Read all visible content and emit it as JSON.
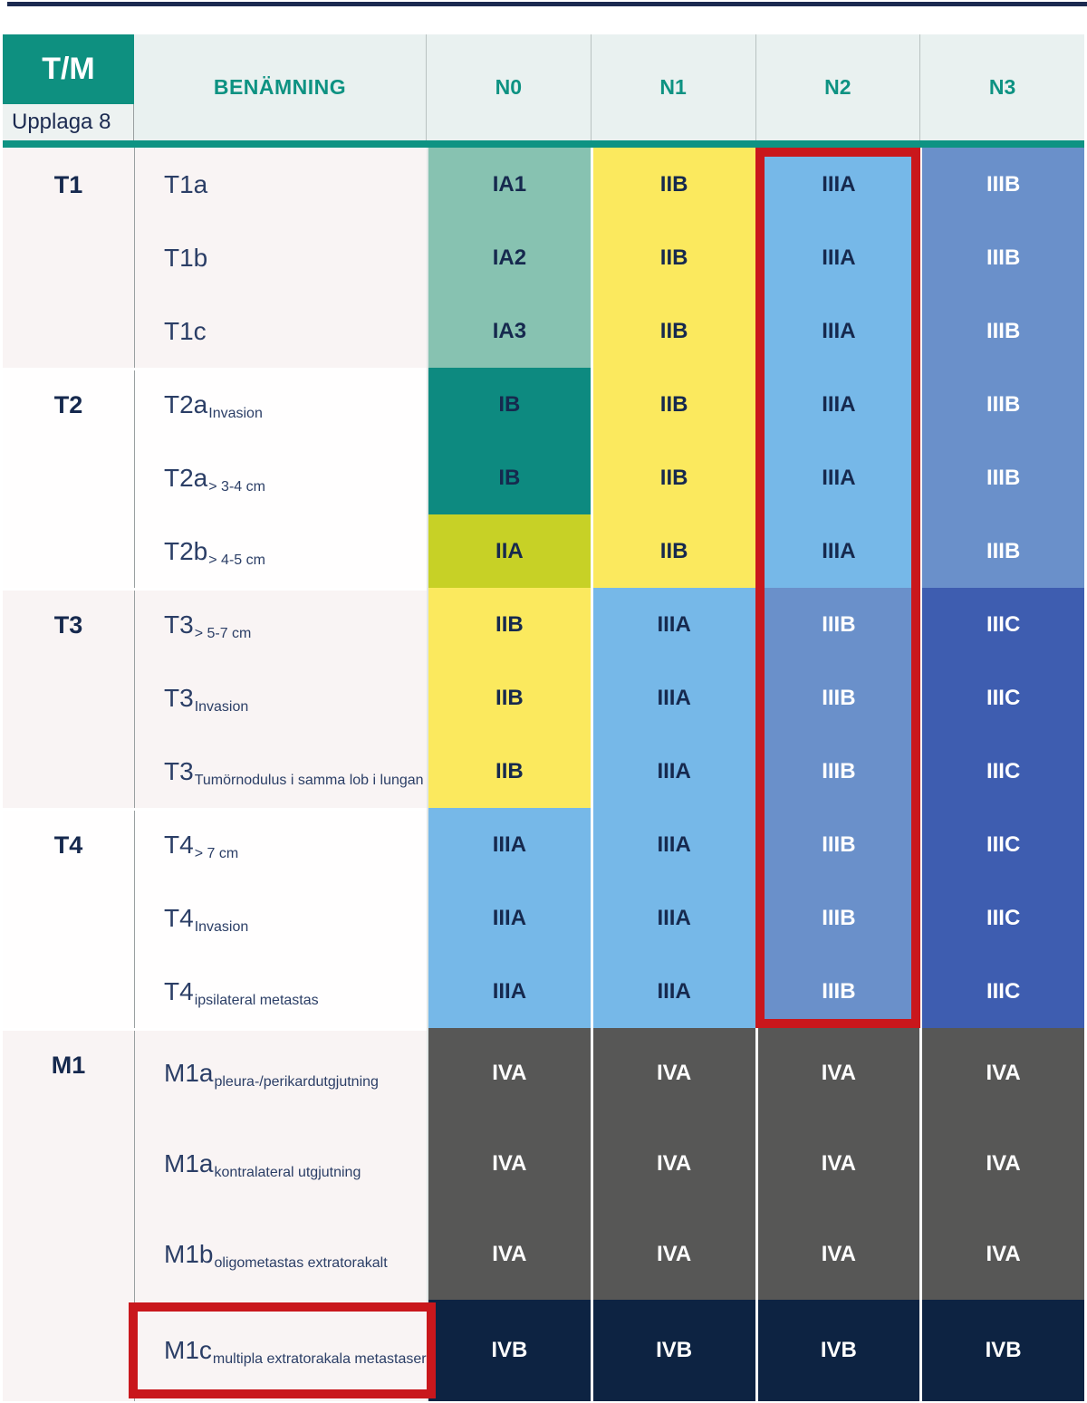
{
  "colors": {
    "top_bar_navy": "#1B2A50",
    "header_teal_bg": "#0E9080",
    "header_text_teal": "#0D9282",
    "header_cell_bg": "#E9F1F0",
    "divider_teal_bar": "#0E9383",
    "group_bg_pink": "#F9F4F4",
    "group_bg_white": "#FFFEFE",
    "dark_navy_text": "#16294E",
    "row_label_text": "#2B3E66",
    "red_highlight": "#C9171C"
  },
  "stage_styles": {
    "IA": {
      "bg": "#87C2B1",
      "fg": "#16294E"
    },
    "IB": {
      "bg": "#0D8A80",
      "fg": "#16294E"
    },
    "IIA": {
      "bg": "#C7D126",
      "fg": "#16294E"
    },
    "IIB": {
      "bg": "#FBE95E",
      "fg": "#16294E"
    },
    "IIIA": {
      "bg": "#76B8E8",
      "fg": "#16294E"
    },
    "IIIB": {
      "bg": "#6A90CA",
      "fg": "#FFFFFF"
    },
    "IIIC": {
      "bg": "#3E5DB0",
      "fg": "#FFFFFF"
    },
    "IVA": {
      "bg": "#575756",
      "fg": "#FFFFFF"
    },
    "IVB": {
      "bg": "#0D2342",
      "fg": "#FFFFFF"
    }
  },
  "highlights": {
    "n2_column_box": {
      "target": "N2",
      "color": "#C9171C"
    },
    "m1c_row_box": {
      "target": "M1c",
      "color": "#C9171C"
    }
  },
  "chart_data": {
    "type": "table",
    "corner_label": "T/M",
    "edition_label": "Upplaga 8",
    "row_header_label": "BENÄMNING",
    "columns": [
      "N0",
      "N1",
      "N2",
      "N3"
    ],
    "groups": [
      {
        "label": "T1",
        "bg": "pink",
        "rows": [
          {
            "name": "T1a",
            "sub": "",
            "values": [
              "IA1",
              "IIB",
              "IIIA",
              "IIIB"
            ]
          },
          {
            "name": "T1b",
            "sub": "",
            "values": [
              "IA2",
              "IIB",
              "IIIA",
              "IIIB"
            ]
          },
          {
            "name": "T1c",
            "sub": "",
            "values": [
              "IA3",
              "IIB",
              "IIIA",
              "IIIB"
            ]
          }
        ]
      },
      {
        "label": "T2",
        "bg": "white",
        "rows": [
          {
            "name": "T2a",
            "sub": "Invasion",
            "values": [
              "IB",
              "IIB",
              "IIIA",
              "IIIB"
            ]
          },
          {
            "name": "T2a",
            "sub": "> 3-4 cm",
            "values": [
              "IB",
              "IIB",
              "IIIA",
              "IIIB"
            ]
          },
          {
            "name": "T2b",
            "sub": "> 4-5 cm",
            "values": [
              "IIA",
              "IIB",
              "IIIA",
              "IIIB"
            ]
          }
        ]
      },
      {
        "label": "T3",
        "bg": "pink",
        "rows": [
          {
            "name": "T3",
            "sub": "> 5-7 cm",
            "values": [
              "IIB",
              "IIIA",
              "IIIB",
              "IIIC"
            ]
          },
          {
            "name": "T3",
            "sub": "Invasion",
            "values": [
              "IIB",
              "IIIA",
              "IIIB",
              "IIIC"
            ]
          },
          {
            "name": "T3",
            "sub": "Tumörnodulus i samma lob i lungan",
            "values": [
              "IIB",
              "IIIA",
              "IIIB",
              "IIIC"
            ]
          }
        ]
      },
      {
        "label": "T4",
        "bg": "white",
        "rows": [
          {
            "name": "T4",
            "sub": "> 7 cm",
            "values": [
              "IIIA",
              "IIIA",
              "IIIB",
              "IIIC"
            ]
          },
          {
            "name": "T4",
            "sub": "Invasion",
            "values": [
              "IIIA",
              "IIIA",
              "IIIB",
              "IIIC"
            ]
          },
          {
            "name": "T4",
            "sub": "ipsilateral metastas",
            "values": [
              "IIIA",
              "IIIA",
              "IIIB",
              "IIIC"
            ]
          }
        ]
      },
      {
        "label": "M1",
        "bg": "pink",
        "rows": [
          {
            "name": "M1a",
            "sub": "pleura-/perikardutgjutning",
            "values": [
              "IVA",
              "IVA",
              "IVA",
              "IVA"
            ]
          },
          {
            "name": "M1a",
            "sub": "kontralateral utgjutning",
            "values": [
              "IVA",
              "IVA",
              "IVA",
              "IVA"
            ]
          },
          {
            "name": "M1b",
            "sub": "oligometastas extratorakalt",
            "values": [
              "IVA",
              "IVA",
              "IVA",
              "IVA"
            ]
          },
          {
            "name": "M1c",
            "sub": "multipla extratorakala metastaser",
            "values": [
              "IVB",
              "IVB",
              "IVB",
              "IVB"
            ],
            "highlighted": true
          }
        ]
      }
    ]
  }
}
